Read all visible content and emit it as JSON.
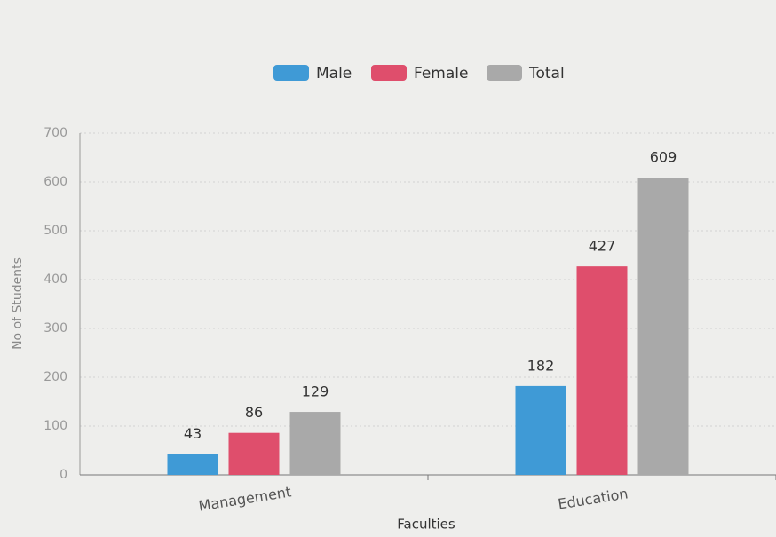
{
  "chart_data": {
    "type": "bar",
    "categories": [
      "Management",
      "Education"
    ],
    "series": [
      {
        "name": "Male",
        "color": "#3f9ad6",
        "values": [
          43,
          182
        ]
      },
      {
        "name": "Female",
        "color": "#df4e6c",
        "values": [
          86,
          427
        ]
      },
      {
        "name": "Total",
        "color": "#a9a9a9",
        "values": [
          129,
          609
        ]
      }
    ],
    "ylim": [
      0,
      700
    ],
    "yticks": [
      0,
      100,
      200,
      300,
      400,
      500,
      600,
      700
    ],
    "xlabel": "Faculties",
    "ylabel": "No of Students",
    "grid": true,
    "legend": "top"
  }
}
